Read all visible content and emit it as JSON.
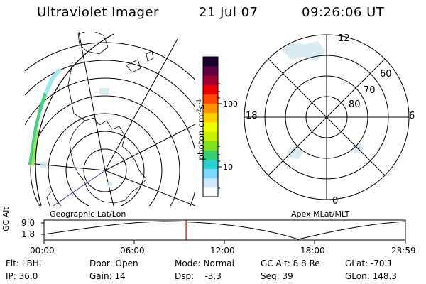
{
  "header": {
    "instrument": "Ultraviolet Imager",
    "date": "21 Jul 07",
    "time": "09:26:06 UT"
  },
  "colorbar": {
    "label": "photon cm",
    "exp1": "-2",
    "label_mid": "s",
    "exp2": "-1",
    "ticks": [
      "100",
      "10"
    ],
    "colors": [
      "#ffffff",
      "#cfe8ff",
      "#7fd8ff",
      "#2ad0d0",
      "#35d070",
      "#7ee21c",
      "#c8f000",
      "#f0ff00",
      "#ffd000",
      "#ff9600",
      "#ff4a00",
      "#ee0000",
      "#a0002e",
      "#600040",
      "#1a0030"
    ]
  },
  "left_panel": {
    "label": "Geographic Lat/Lon"
  },
  "right_panel": {
    "label": "Apex MLat/MLT",
    "mlt_labels": [
      "12",
      "18",
      "6",
      "0"
    ],
    "mlat_labels": [
      "60",
      "70",
      "80"
    ]
  },
  "timeline": {
    "ylabel": "GC Alt",
    "yticks": [
      "9.0",
      "1.8"
    ],
    "xticks": [
      "00:00",
      "06:00",
      "12:00",
      "18:00",
      "23:59"
    ],
    "marker_time_hours": 9.435,
    "marker_color": "#e00000"
  },
  "info": {
    "flt": "Flt: LBHL",
    "ip": "IP: 36.0",
    "door": "Door: Open",
    "gain": "Gain: 14",
    "mode": "Mode: Normal",
    "dsp": "Dsp:    -3.3",
    "gc_alt": "GC Alt: 8.8 Re",
    "seq": "Seq: 39",
    "glat": "GLat: -70.1",
    "glon": "GLon: 148.3"
  }
}
